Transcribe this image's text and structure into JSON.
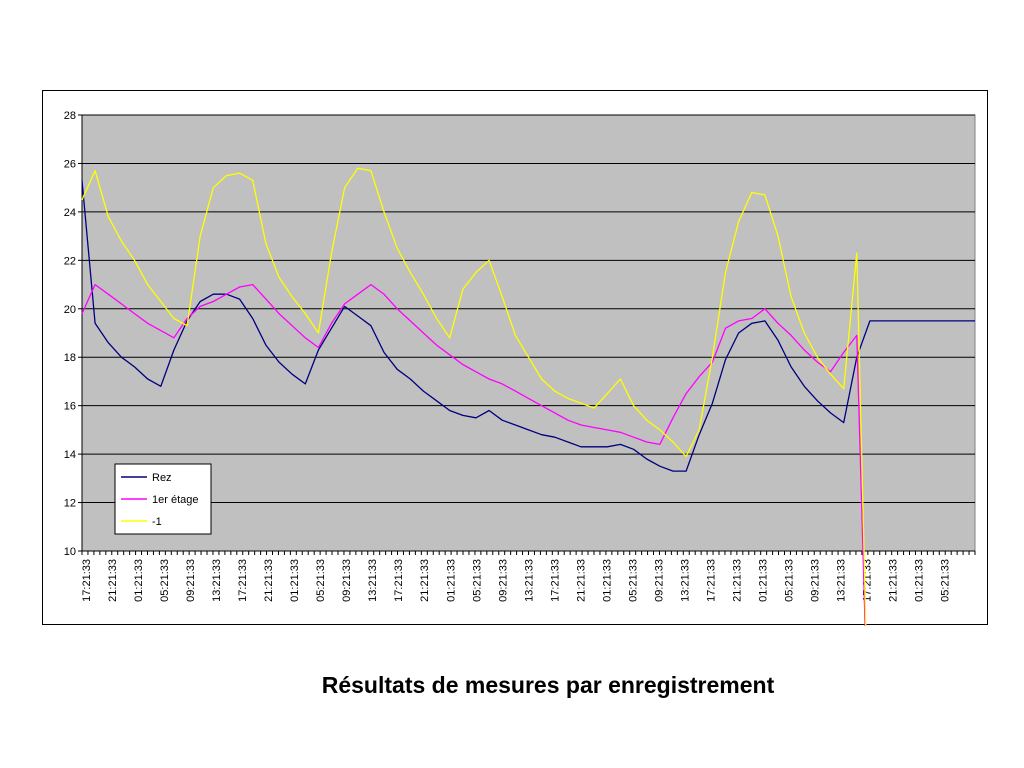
{
  "caption": "Résultats de mesures par enregistrement",
  "chart_data": {
    "type": "line",
    "title": "",
    "xlabel": "",
    "ylabel": "",
    "ylim": [
      10,
      28
    ],
    "yticks": [
      10,
      12,
      14,
      16,
      18,
      20,
      22,
      24,
      26,
      28
    ],
    "grid": true,
    "legend": "bottom-left",
    "plot_background": "#c0c0c0",
    "x_count": 69,
    "x_tick_labels": [
      "17:21:33",
      "21:21:33",
      "01:21:33",
      "05:21:33",
      "09:21:33",
      "13:21:33",
      "17:21:33",
      "21:21:33",
      "01:21:33",
      "05:21:33",
      "09:21:33",
      "13:21:33",
      "17:21:33",
      "21:21:33",
      "01:21:33",
      "05:21:33",
      "09:21:33",
      "13:21:33",
      "17:21:33",
      "21:21:33",
      "01:21:33",
      "05:21:33",
      "09:21:33",
      "13:21:33",
      "17:21:33",
      "21:21:33",
      "01:21:33",
      "05:21:33",
      "09:21:33",
      "13:21:33",
      "17:21:33",
      "21:21:33",
      "01:21:33",
      "05:21:33"
    ],
    "x_tick_step": 2,
    "series": [
      {
        "name": "Rez",
        "color": "#000080",
        "values": [
          25.3,
          19.4,
          18.6,
          18.0,
          17.6,
          17.1,
          16.8,
          18.3,
          19.5,
          20.3,
          20.6,
          20.6,
          20.4,
          19.6,
          18.5,
          17.8,
          17.3,
          16.9,
          18.3,
          19.2,
          20.1,
          19.7,
          19.3,
          18.2,
          17.5,
          17.1,
          16.6,
          16.2,
          15.8,
          15.6,
          15.5,
          15.8,
          15.4,
          15.2,
          15.0,
          14.8,
          14.7,
          14.5,
          14.3,
          14.3,
          14.3,
          14.4,
          14.2,
          13.8,
          13.5,
          13.3,
          13.3,
          14.8,
          16.1,
          17.9,
          19.0,
          19.4,
          19.5,
          18.7,
          17.6,
          16.8,
          16.2,
          15.7,
          15.3,
          18.0,
          19.5
        ]
      },
      {
        "name": "1er étage",
        "color": "#ff00ff",
        "values": [
          19.8,
          21.0,
          20.6,
          20.2,
          19.8,
          19.4,
          19.1,
          18.8,
          19.6,
          20.1,
          20.3,
          20.6,
          20.9,
          21.0,
          20.4,
          19.8,
          19.3,
          18.8,
          18.4,
          19.4,
          20.2,
          20.6,
          21.0,
          20.6,
          20.0,
          19.5,
          19.0,
          18.5,
          18.1,
          17.7,
          17.4,
          17.1,
          16.9,
          16.6,
          16.3,
          16.0,
          15.7,
          15.4,
          15.2,
          15.1,
          15.0,
          14.9,
          14.7,
          14.5,
          14.4,
          15.5,
          16.5,
          17.2,
          17.8,
          19.2,
          19.5,
          19.6,
          20.0,
          19.4,
          18.9,
          18.3,
          17.8,
          17.4,
          18.2,
          18.9,
          0
        ]
      },
      {
        "name": "-1",
        "color": "#ffff00",
        "values": [
          24.5,
          25.7,
          23.8,
          22.8,
          22.0,
          21.0,
          20.3,
          19.6,
          19.3,
          23.0,
          25.0,
          25.5,
          25.6,
          25.3,
          22.7,
          21.3,
          20.5,
          19.8,
          19.0,
          22.3,
          25.0,
          25.8,
          25.7,
          24.0,
          22.5,
          21.5,
          20.6,
          19.6,
          18.8,
          20.8,
          21.5,
          22.0,
          20.5,
          18.9,
          18.0,
          17.1,
          16.6,
          16.3,
          16.1,
          15.9,
          16.5,
          17.1,
          16.0,
          15.4,
          15.0,
          14.5,
          13.9,
          15.0,
          18.0,
          21.5,
          23.6,
          24.8,
          24.7,
          23.0,
          20.5,
          19.0,
          18.0,
          17.3,
          16.7,
          22.3,
          0
        ]
      }
    ]
  }
}
